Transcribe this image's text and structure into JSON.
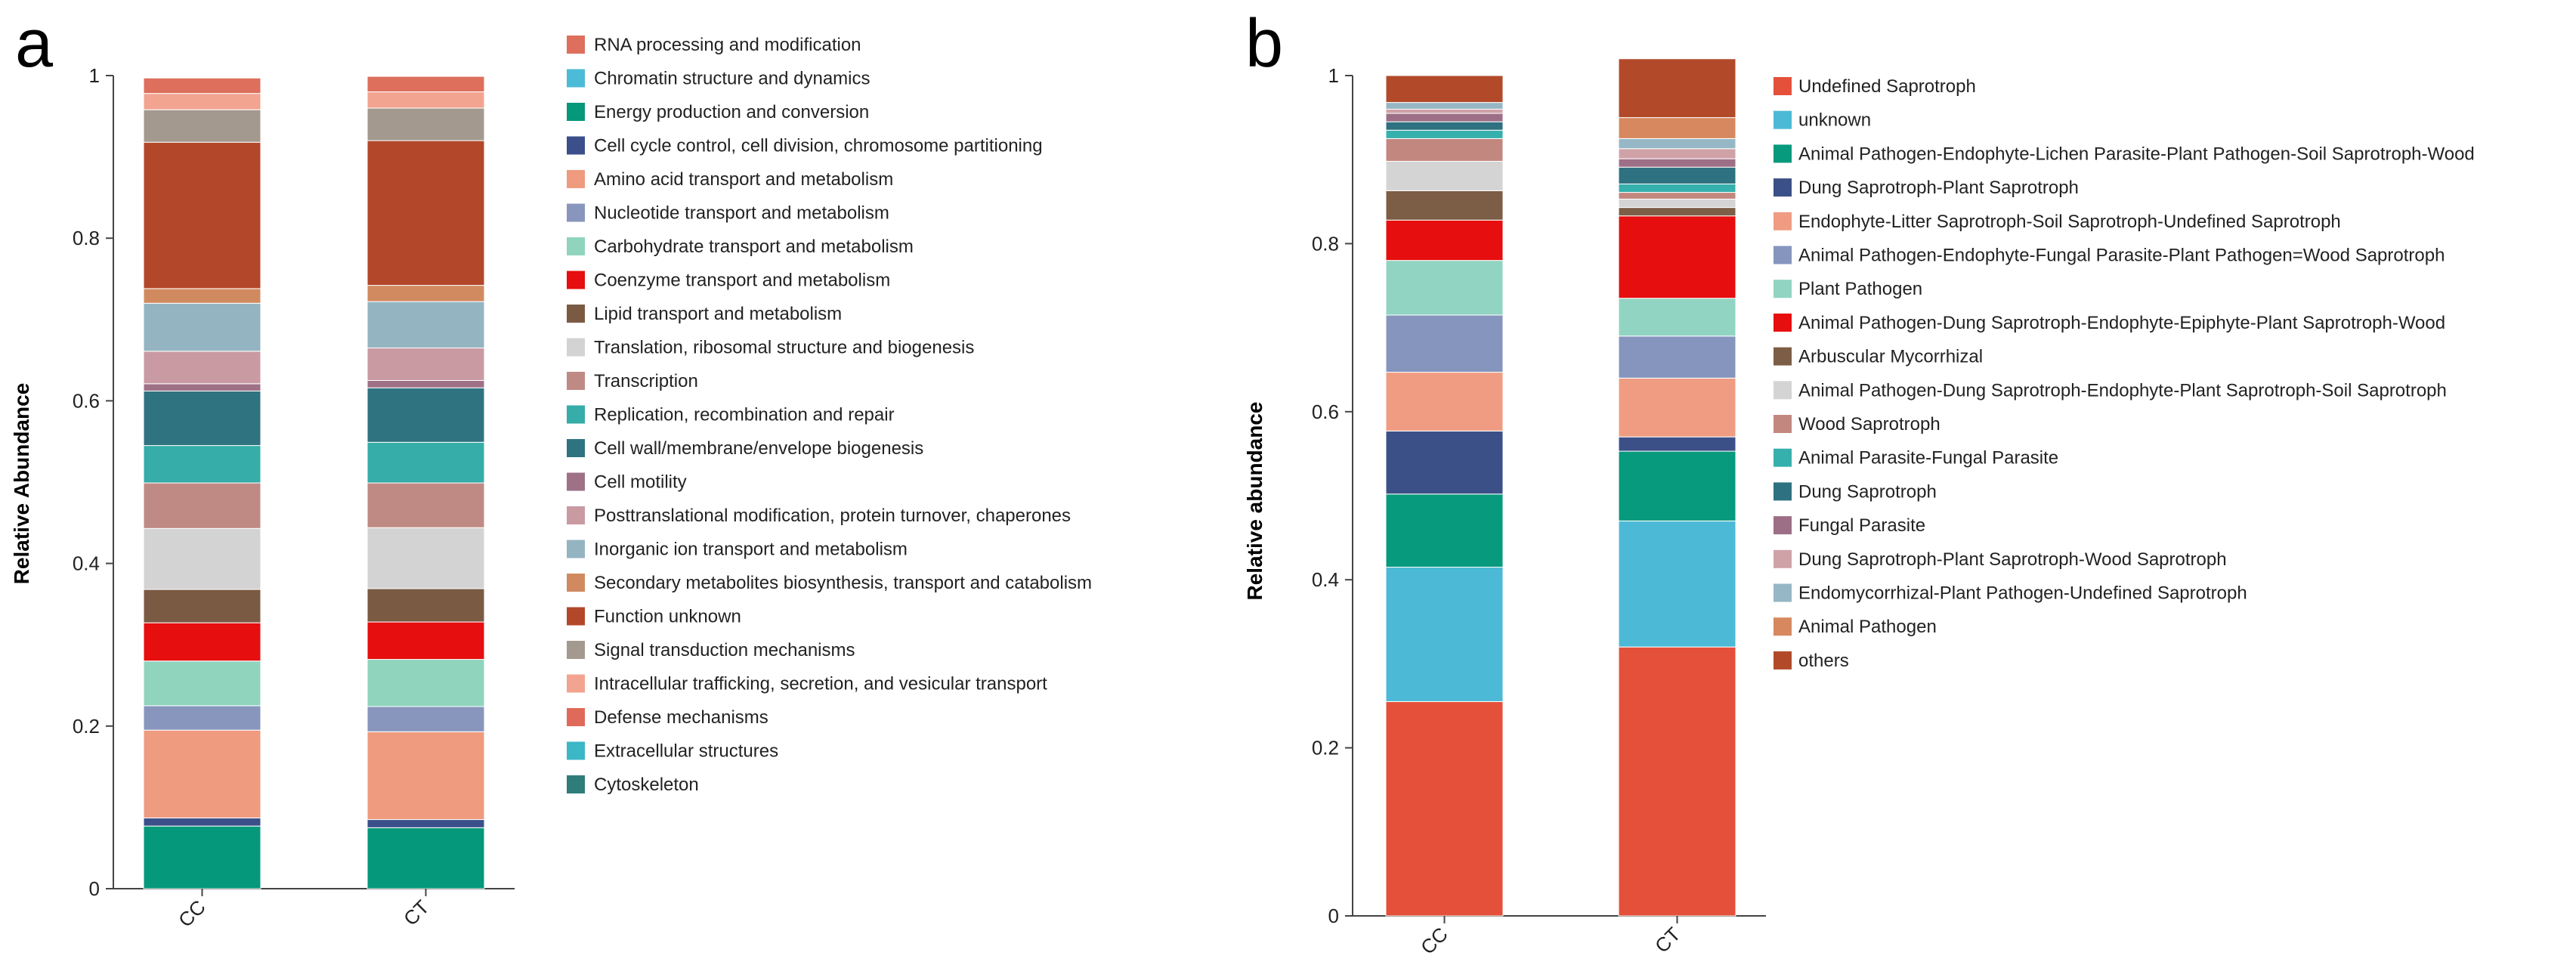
{
  "figure": {
    "panels": [
      {
        "letter": "a"
      },
      {
        "letter": "b"
      }
    ]
  },
  "chart_data": [
    {
      "type": "bar",
      "stacked": true,
      "ylabel": "Relative Abundance",
      "xlabel": "",
      "ylim": [
        0,
        1
      ],
      "yticks": [
        "0",
        "0.2",
        "0.4",
        "0.6",
        "0.8",
        "1"
      ],
      "categories": [
        "CC",
        "CT"
      ],
      "grid": false,
      "legend_position": "right",
      "series": [
        {
          "name": "Cytoskeleton",
          "color": "#2E7D7A",
          "values": [
            0.0,
            0.0
          ]
        },
        {
          "name": "Extracellular structures",
          "color": "#3BB7C6",
          "values": [
            0.0,
            0.0
          ]
        },
        {
          "name": "Defense mechanisms",
          "color": "#E06A5A",
          "values": [
            0.0,
            0.0
          ]
        },
        {
          "name": "Energy production and conversion",
          "color": "#06987A",
          "values": [
            0.077,
            0.075
          ]
        },
        {
          "name": "Cell cycle control, cell division, chromosome partitioning",
          "color": "#3B4F8A",
          "values": [
            0.01,
            0.01
          ]
        },
        {
          "name": "Amino acid transport and metabolism",
          "color": "#EE9B7F",
          "values": [
            0.108,
            0.108
          ]
        },
        {
          "name": "Nucleotide transport and metabolism",
          "color": "#8896BD",
          "values": [
            0.03,
            0.031
          ]
        },
        {
          "name": "Carbohydrate transport and metabolism",
          "color": "#91D4BE",
          "values": [
            0.055,
            0.058
          ]
        },
        {
          "name": "Coenzyme transport and metabolism",
          "color": "#E60E0E",
          "values": [
            0.047,
            0.046
          ]
        },
        {
          "name": "Lipid transport and metabolism",
          "color": "#7B5A44",
          "values": [
            0.041,
            0.041
          ]
        },
        {
          "name": "Translation, ribosomal structure and biogenesis",
          "color": "#D3D3D3",
          "values": [
            0.075,
            0.075
          ]
        },
        {
          "name": "Transcription",
          "color": "#C08A84",
          "values": [
            0.056,
            0.055
          ]
        },
        {
          "name": "Replication, recombination and repair",
          "color": "#36ADA8",
          "values": [
            0.046,
            0.05
          ]
        },
        {
          "name": "Cell wall/membrane/envelope biogenesis",
          "color": "#2F7380",
          "values": [
            0.067,
            0.067
          ]
        },
        {
          "name": "Cell motility",
          "color": "#9E7187",
          "values": [
            0.009,
            0.009
          ]
        },
        {
          "name": "Posttranslational modification, protein turnover, chaperones",
          "color": "#C99AA2",
          "values": [
            0.04,
            0.04
          ]
        },
        {
          "name": "Inorganic ion transport and metabolism",
          "color": "#94B4C2",
          "values": [
            0.059,
            0.057
          ]
        },
        {
          "name": "Secondary metabolites biosynthesis, transport and catabolism",
          "color": "#D18A5F",
          "values": [
            0.018,
            0.02
          ]
        },
        {
          "name": "Function unknown",
          "color": "#B3472A",
          "values": [
            0.18,
            0.178
          ]
        },
        {
          "name": "Signal transduction mechanisms",
          "color": "#A4998F",
          "values": [
            0.04,
            0.04
          ]
        },
        {
          "name": "Intracellular trafficking, secretion, and vesicular transport",
          "color": "#F2A491",
          "values": [
            0.02,
            0.02
          ]
        },
        {
          "name": "RNA processing and modification",
          "color": "#DD6F5C",
          "values": [
            0.019,
            0.019
          ]
        },
        {
          "name": "Chromatin structure and dynamics",
          "color": "#4BBBD7",
          "values": [
            0.0,
            0.0
          ]
        }
      ],
      "legend_order": [
        "RNA processing and modification",
        "Chromatin structure and dynamics",
        "Energy production and conversion",
        "Cell cycle control, cell division, chromosome partitioning",
        "Amino acid transport and metabolism",
        "Nucleotide transport and metabolism",
        "Carbohydrate transport and metabolism",
        "Coenzyme transport and metabolism",
        "Lipid transport and metabolism",
        "Translation, ribosomal structure and biogenesis",
        "Transcription",
        "Replication, recombination and repair",
        "Cell wall/membrane/envelope biogenesis",
        "Cell motility",
        "Posttranslational modification, protein turnover, chaperones",
        "Inorganic ion transport and metabolism",
        "Secondary metabolites biosynthesis, transport and catabolism",
        "Function unknown",
        "Signal transduction mechanisms",
        "Intracellular trafficking, secretion, and vesicular transport",
        "Defense mechanisms",
        "Extracellular structures",
        "Cytoskeleton"
      ]
    },
    {
      "type": "bar",
      "stacked": true,
      "ylabel": "Relative abundance",
      "xlabel": "",
      "ylim": [
        0,
        1
      ],
      "yticks": [
        "0",
        "0.2",
        "0.4",
        "0.6",
        "0.8",
        "1"
      ],
      "categories": [
        "CC",
        "CT"
      ],
      "grid": false,
      "legend_position": "right",
      "series": [
        {
          "name": "Undefined Saprotroph",
          "color": "#E4503A",
          "values": [
            0.255,
            0.32
          ]
        },
        {
          "name": "unknown",
          "color": "#4CBAD6",
          "values": [
            0.16,
            0.15
          ]
        },
        {
          "name": "Animal Pathogen-Endophyte-Lichen Parasite-Plant Pathogen-Soil Saprotroph-Wood",
          "color": "#079A7C",
          "values": [
            0.087,
            0.083
          ]
        },
        {
          "name": "Dung Saprotroph-Plant Saprotroph",
          "color": "#3C5088",
          "values": [
            0.075,
            0.017
          ]
        },
        {
          "name": "Endophyte-Litter Saprotroph-Soil Saprotroph-Undefined Saprotroph",
          "color": "#EF9C82",
          "values": [
            0.07,
            0.07
          ]
        },
        {
          "name": "Animal Pathogen-Endophyte-Fungal Parasite-Plant Pathogen=Wood Saprotroph",
          "color": "#8595BE",
          "values": [
            0.068,
            0.05
          ]
        },
        {
          "name": "Plant Pathogen",
          "color": "#91D4C1",
          "values": [
            0.065,
            0.045
          ]
        },
        {
          "name": "Animal Pathogen-Dung Saprotroph-Endophyte-Epiphyte-Plant Saprotroph-Wood",
          "color": "#E60E0E",
          "values": [
            0.048,
            0.098
          ]
        },
        {
          "name": "Arbuscular Mycorrhizal",
          "color": "#7C5D45",
          "values": [
            0.035,
            0.01
          ]
        },
        {
          "name": "Animal Pathogen-Dung Saprotroph-Endophyte-Plant Saprotroph-Soil Saprotroph",
          "color": "#D4D4D4",
          "values": [
            0.035,
            0.01
          ]
        },
        {
          "name": "Wood Saprotroph",
          "color": "#C2877F",
          "values": [
            0.027,
            0.008
          ]
        },
        {
          "name": "Animal Parasite-Fungal Parasite",
          "color": "#36B0AC",
          "values": [
            0.01,
            0.01
          ]
        },
        {
          "name": "Dung Saprotroph",
          "color": "#2E7180",
          "values": [
            0.01,
            0.02
          ]
        },
        {
          "name": "Fungal Parasite",
          "color": "#9D6F86",
          "values": [
            0.01,
            0.01
          ]
        },
        {
          "name": "Dung Saprotroph-Plant Saprotroph-Wood Saprotroph",
          "color": "#CFA2A8",
          "values": [
            0.005,
            0.012
          ]
        },
        {
          "name": "Endomycorrhizal-Plant Pathogen-Undefined Saprotroph",
          "color": "#96B7C5",
          "values": [
            0.008,
            0.012
          ]
        },
        {
          "name": "Animal Pathogen",
          "color": "#D7885F",
          "values": [
            0.0,
            0.025
          ]
        },
        {
          "name": "others",
          "color": "#B24A2A",
          "values": [
            0.032,
            0.07
          ]
        }
      ]
    }
  ]
}
